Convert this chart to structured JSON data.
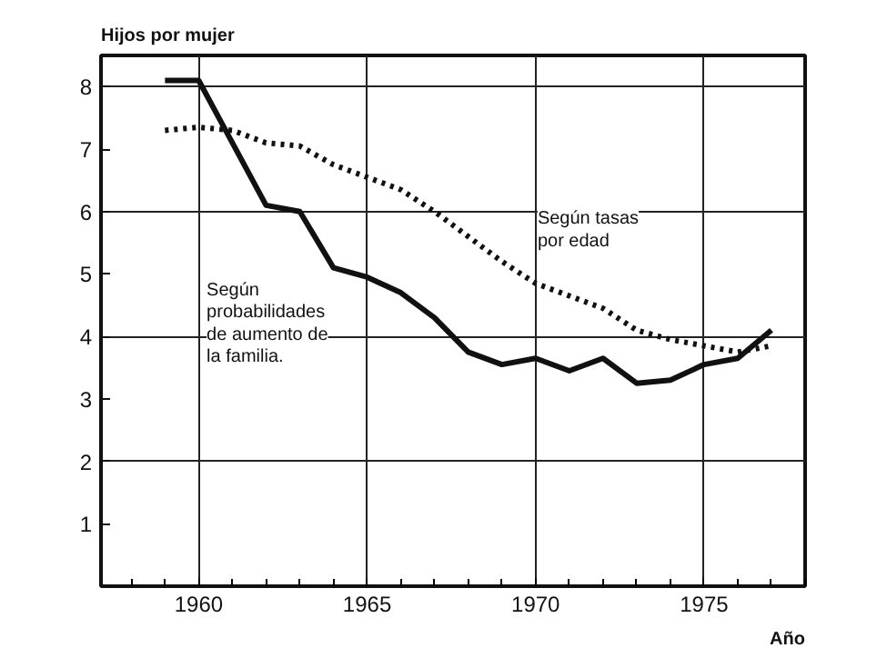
{
  "chart_data": {
    "type": "line",
    "ylabel": "Hijos por mujer",
    "xlabel": "Año",
    "x": [
      1959,
      1960,
      1961,
      1962,
      1963,
      1964,
      1965,
      1966,
      1967,
      1968,
      1969,
      1970,
      1971,
      1972,
      1973,
      1974,
      1975,
      1976,
      1977
    ],
    "series": [
      {
        "color": "#111111",
        "line_style": "solid",
        "values": [
          8.1,
          8.1,
          7.1,
          6.1,
          6.0,
          5.1,
          4.95,
          4.7,
          4.3,
          3.75,
          3.55,
          3.65,
          3.45,
          3.65,
          3.25,
          3.3,
          3.55,
          3.65,
          4.1
        ]
      },
      {
        "color": "#111111",
        "line_style": "dotted",
        "values": [
          7.3,
          7.35,
          7.3,
          7.1,
          7.05,
          6.75,
          6.55,
          6.35,
          6.0,
          5.6,
          5.2,
          4.85,
          4.65,
          4.45,
          4.1,
          3.95,
          3.85,
          3.75,
          3.85
        ]
      }
    ],
    "annotations": [
      "Según tasas\n    por edad",
      "Según\nprobabilidades\nde aumento de\nla familia."
    ],
    "xlim": [
      1957.1,
      1978
    ],
    "ylim": [
      0,
      8.5
    ],
    "xticks": [
      1960,
      1965,
      1970,
      1975
    ],
    "yticks": [
      1,
      2,
      3,
      4,
      5,
      6,
      7,
      8
    ],
    "grid": true,
    "marker": "none"
  }
}
